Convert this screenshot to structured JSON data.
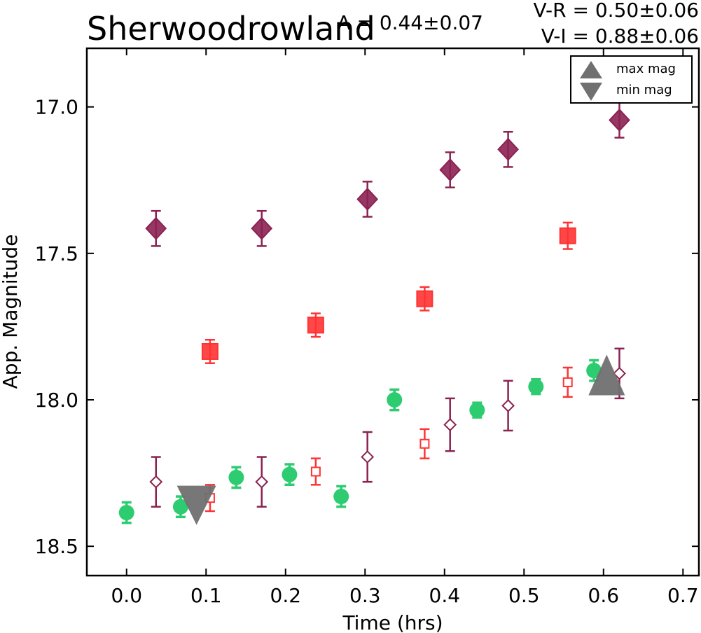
{
  "chart_data": {
    "type": "scatter",
    "title": "Sherwoodrowland",
    "annotations": {
      "amplitude": "A = 0.44±0.07",
      "v_r": "V-R = 0.50±0.06",
      "v_i": "V-I  = 0.88±0.06"
    },
    "xlabel": "Time (hrs)",
    "ylabel": "App. Magnitude",
    "xlim": [
      -0.05,
      0.72
    ],
    "ylim": [
      18.6,
      16.8
    ],
    "y_inverted": true,
    "xticks": [
      "0.0",
      "0.1",
      "0.2",
      "0.3",
      "0.4",
      "0.5",
      "0.6",
      "0.7"
    ],
    "yticks": [
      "17.0",
      "17.5",
      "18.0",
      "18.5"
    ],
    "legend": {
      "position": "top-right",
      "entries": [
        {
          "label": "max mag",
          "marker": "triangle-up"
        },
        {
          "label": "min mag",
          "marker": "triangle-down"
        }
      ]
    },
    "colors": {
      "green": "#2ecc71",
      "red": "#ff3333",
      "purple": "#8b2252",
      "gray": "#707070"
    },
    "series": [
      {
        "marker": "circle",
        "filled": true,
        "color": "#2ecc71",
        "x": [
          0.0,
          0.068,
          0.138,
          0.205,
          0.27,
          0.337,
          0.441,
          0.515,
          0.588
        ],
        "y": [
          18.385,
          18.365,
          18.265,
          18.255,
          18.33,
          18.0,
          18.035,
          17.955,
          17.9
        ],
        "err": [
          0.035,
          0.035,
          0.035,
          0.035,
          0.035,
          0.035,
          0.025,
          0.025,
          0.035
        ]
      },
      {
        "marker": "square",
        "filled": false,
        "color": "#ff3333",
        "x": [
          0.105,
          0.238,
          0.375,
          0.555
        ],
        "y": [
          18.335,
          18.245,
          18.15,
          17.94
        ],
        "err": [
          0.045,
          0.045,
          0.05,
          0.05
        ]
      },
      {
        "marker": "diamond",
        "filled": false,
        "color": "#8b2252",
        "x": [
          0.037,
          0.17,
          0.303,
          0.407,
          0.48,
          0.62
        ],
        "y": [
          18.28,
          18.28,
          18.195,
          18.085,
          18.02,
          17.91
        ],
        "err": [
          0.085,
          0.085,
          0.085,
          0.09,
          0.085,
          0.085
        ]
      },
      {
        "marker": "square",
        "filled": true,
        "color": "#ff3333",
        "x": [
          0.105,
          0.238,
          0.375,
          0.555
        ],
        "y": [
          17.835,
          17.745,
          17.655,
          17.44
        ],
        "err": [
          0.04,
          0.04,
          0.04,
          0.045
        ]
      },
      {
        "marker": "diamond",
        "filled": true,
        "color": "#8b2252",
        "x": [
          0.037,
          0.17,
          0.303,
          0.407,
          0.48,
          0.62
        ],
        "y": [
          17.415,
          17.415,
          17.315,
          17.215,
          17.145,
          17.045
        ],
        "err": [
          0.06,
          0.06,
          0.06,
          0.06,
          0.06,
          0.06
        ]
      }
    ],
    "extrema": [
      {
        "label": "max mag",
        "marker": "triangle-up",
        "x": 0.604,
        "y": 17.915
      },
      {
        "label": "min mag",
        "marker": "triangle-down",
        "x": 0.088,
        "y": 18.36
      }
    ]
  }
}
